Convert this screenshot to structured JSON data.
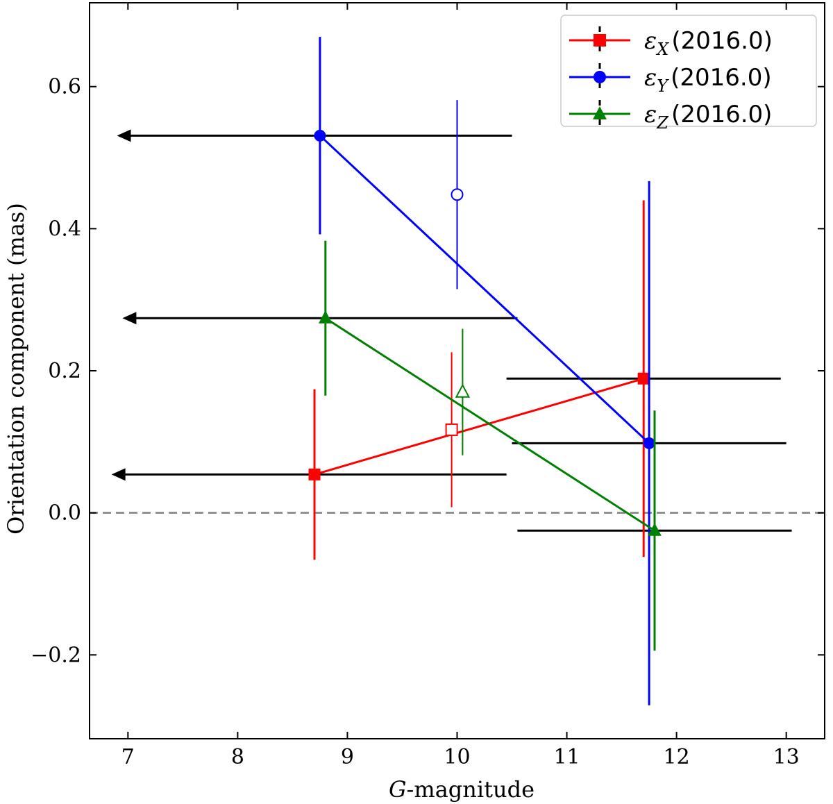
{
  "chart_data": {
    "type": "scatter",
    "title": "",
    "xlabel_italic": "G",
    "xlabel_rest": "-magnitude",
    "ylabel": "Orientation component (mas)",
    "xlim": [
      6.65,
      13.35
    ],
    "ylim": [
      -0.318,
      0.718
    ],
    "xticks": [
      7,
      8,
      9,
      10,
      11,
      12,
      13
    ],
    "xtick_labels": [
      "7",
      "8",
      "9",
      "10",
      "11",
      "12",
      "13"
    ],
    "yticks": [
      -0.2,
      0.0,
      0.2,
      0.4,
      0.6
    ],
    "ytick_labels": [
      "−0.2",
      "0.0",
      "0.2",
      "0.4",
      "0.6"
    ],
    "reference_line": {
      "y": 0.0,
      "style": "dashed",
      "color": "#808080"
    },
    "legend_position": "top-right",
    "series": [
      {
        "name": "eps_X (2016.0)",
        "symbol": "ε",
        "subscript": "X",
        "suffix": "(2016.0)",
        "color": "#ff0000",
        "marker": "square",
        "x": [
          8.7,
          11.7
        ],
        "y": [
          0.054,
          0.189
        ],
        "yerr": [
          0.12,
          0.251
        ],
        "open_point": {
          "x": 9.95,
          "y": 0.117,
          "yerr": 0.109
        }
      },
      {
        "name": "eps_Y (2016.0)",
        "symbol": "ε",
        "subscript": "Y",
        "suffix": "(2016.0)",
        "color": "#0000ff",
        "marker": "circle",
        "x": [
          8.75,
          11.75
        ],
        "y": [
          0.531,
          0.098
        ],
        "yerr": [
          0.139,
          0.369
        ],
        "open_point": {
          "x": 10.0,
          "y": 0.448,
          "yerr": 0.133
        }
      },
      {
        "name": "eps_Z (2016.0)",
        "symbol": "ε",
        "subscript": "Z",
        "suffix": "(2016.0)",
        "color": "#008000",
        "marker": "triangle",
        "x": [
          8.8,
          11.8
        ],
        "y": [
          0.274,
          -0.025
        ],
        "yerr": [
          0.109,
          0.169
        ],
        "open_point": {
          "x": 10.05,
          "y": 0.17,
          "yerr": 0.089
        }
      }
    ],
    "magnitude_ranges": [
      {
        "y": 0.531,
        "x_from": 10.5,
        "x_to": 6.9,
        "arrow": true
      },
      {
        "y": 0.274,
        "x_from": 10.55,
        "x_to": 6.95,
        "arrow": true
      },
      {
        "y": 0.054,
        "x_from": 10.45,
        "x_to": 6.85,
        "arrow": true
      },
      {
        "y": 0.189,
        "x_from": 10.45,
        "x_to": 12.95,
        "arrow": false
      },
      {
        "y": 0.098,
        "x_from": 10.5,
        "x_to": 13.0,
        "arrow": false
      },
      {
        "y": -0.025,
        "x_from": 10.55,
        "x_to": 13.05,
        "arrow": false
      }
    ],
    "range_color": "#000000"
  }
}
